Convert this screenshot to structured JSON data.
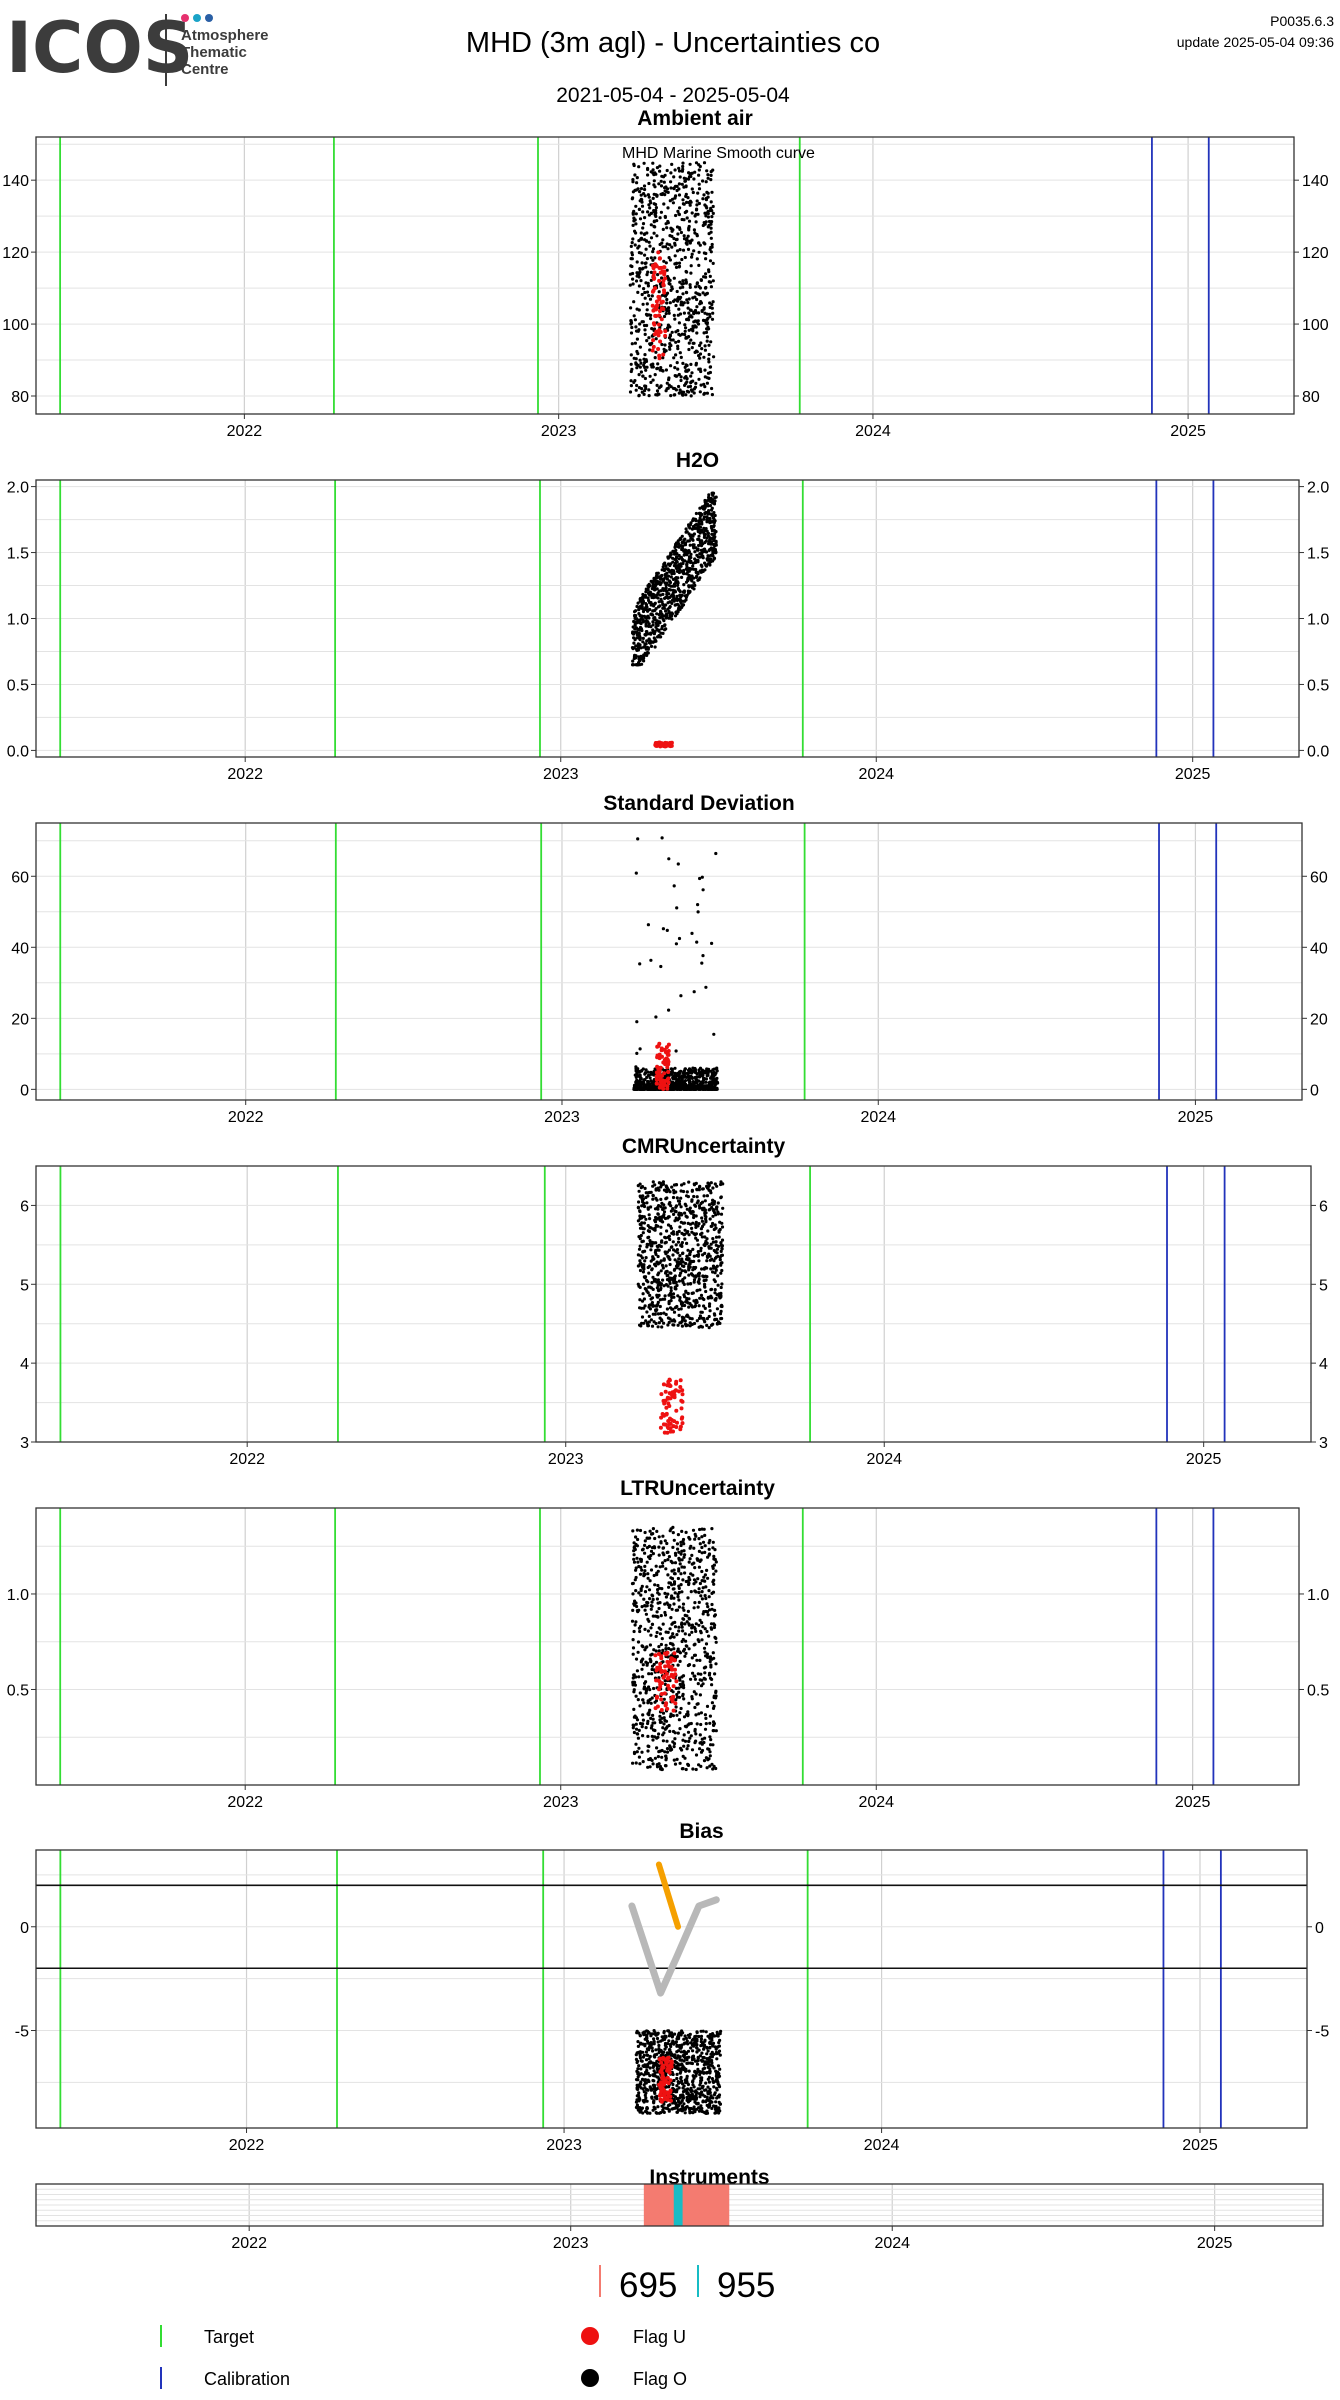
{
  "header": {
    "logo_text": "ICOS",
    "logo_sub": [
      "Atmosphere",
      "Thematic",
      "Centre"
    ],
    "logo_dot_colors": [
      "#e6306e",
      "#1aa3c7",
      "#2a5fa5"
    ],
    "title": "MHD  (3m agl) - Uncertainties co",
    "date_range": "2021-05-04 - 2025-05-04",
    "version": "P0035.6.3",
    "update": "update  2025-05-04 09:36"
  },
  "colors": {
    "target": "#33dd33",
    "calibration": "#2233bb",
    "flag_u": "#ee1111",
    "flag_o": "#000000",
    "bias_orange": "#f5a000",
    "bias_grey": "#b8b8b8",
    "instrument_695": "#f47b70",
    "instrument_955": "#17bcc4",
    "grid": "#e3e3e3"
  },
  "chart_data": [
    {
      "id": "ambient",
      "type": "scatter",
      "title": "Ambient air",
      "annotation": "MHD Marine Smooth curve",
      "xlim": [
        "2021-05-04",
        "2025-05-04"
      ],
      "ylim": [
        75,
        152
      ],
      "yticks": [
        80,
        100,
        120,
        140
      ],
      "xticks": [
        "2022",
        "2023",
        "2024",
        "2025"
      ],
      "target_lines": [
        "2021-06-01",
        "2022-04-15",
        "2022-12-08",
        "2023-10-08"
      ],
      "calibration_lines": [
        "2024-11-20",
        "2025-01-25"
      ],
      "series": [
        {
          "flag": "O",
          "x_range": [
            "2023-03-25",
            "2023-06-30"
          ],
          "y_range": [
            80,
            145
          ]
        },
        {
          "flag": "U",
          "x_range": [
            "2023-04-20",
            "2023-05-05"
          ],
          "y_range": [
            90,
            120
          ]
        }
      ]
    },
    {
      "id": "h2o",
      "type": "scatter",
      "title": "H2O",
      "xlim": [
        "2021-05-04",
        "2025-05-04"
      ],
      "ylim": [
        -0.05,
        2.05
      ],
      "yticks": [
        0.0,
        0.5,
        1.0,
        1.5,
        2.0
      ],
      "ytick_labels": [
        "0.0",
        "0.5",
        "1.0",
        "1.5",
        "2.0"
      ],
      "xticks": [
        "2022",
        "2023",
        "2024",
        "2025"
      ],
      "target_lines": [
        "2021-06-01",
        "2022-04-15",
        "2022-12-08",
        "2023-10-08"
      ],
      "calibration_lines": [
        "2024-11-20",
        "2025-01-25"
      ],
      "series": [
        {
          "flag": "O",
          "x_range": [
            "2023-03-25",
            "2023-06-30"
          ],
          "y_range": [
            0.65,
            1.95
          ]
        },
        {
          "flag": "U",
          "x_range": [
            "2023-04-20",
            "2023-05-10"
          ],
          "y_range": [
            0.03,
            0.06
          ]
        }
      ]
    },
    {
      "id": "std",
      "type": "scatter",
      "title": "Standard Deviation",
      "xlim": [
        "2021-05-04",
        "2025-05-04"
      ],
      "ylim": [
        -3,
        75
      ],
      "yticks": [
        0,
        20,
        40,
        60
      ],
      "xticks": [
        "2022",
        "2023",
        "2024",
        "2025"
      ],
      "target_lines": [
        "2021-06-01",
        "2022-04-15",
        "2022-12-08",
        "2023-10-08"
      ],
      "calibration_lines": [
        "2024-11-20",
        "2025-01-25"
      ],
      "series": [
        {
          "flag": "O",
          "x_range": [
            "2023-03-25",
            "2023-06-30"
          ],
          "y_range": [
            0,
            72
          ]
        },
        {
          "flag": "U",
          "x_range": [
            "2023-04-20",
            "2023-05-05"
          ],
          "y_range": [
            0,
            13
          ]
        }
      ]
    },
    {
      "id": "cmr",
      "type": "scatter",
      "title": "CMRUncertainty",
      "xlim": [
        "2021-05-04",
        "2025-05-04"
      ],
      "ylim": [
        3,
        6.5
      ],
      "yticks": [
        3,
        4,
        5,
        6
      ],
      "xticks": [
        "2022",
        "2023",
        "2024",
        "2025"
      ],
      "target_lines": [
        "2021-06-01",
        "2022-04-15",
        "2022-12-08",
        "2023-10-08"
      ],
      "calibration_lines": [
        "2024-11-20",
        "2025-01-25"
      ],
      "series": [
        {
          "flag": "O",
          "x_range": [
            "2023-03-25",
            "2023-06-30"
          ],
          "y_range": [
            4.45,
            6.3
          ]
        },
        {
          "flag": "U",
          "x_range": [
            "2023-04-20",
            "2023-05-15"
          ],
          "y_range": [
            3.1,
            3.8
          ]
        }
      ]
    },
    {
      "id": "ltr",
      "type": "scatter",
      "title": "LTRUncertainty",
      "xlim": [
        "2021-05-04",
        "2025-05-04"
      ],
      "ylim": [
        0.0,
        1.45
      ],
      "yticks": [
        0.5,
        1.0
      ],
      "ytick_labels": [
        "0.5",
        "1.0"
      ],
      "xticks": [
        "2022",
        "2023",
        "2024",
        "2025"
      ],
      "target_lines": [
        "2021-06-01",
        "2022-04-15",
        "2022-12-08",
        "2023-10-08"
      ],
      "calibration_lines": [
        "2024-11-20",
        "2025-01-25"
      ],
      "series": [
        {
          "flag": "O",
          "x_range": [
            "2023-03-25",
            "2023-06-30"
          ],
          "y_range": [
            0.08,
            1.35
          ]
        },
        {
          "flag": "U",
          "x_range": [
            "2023-04-20",
            "2023-05-15"
          ],
          "y_range": [
            0.38,
            0.7
          ]
        }
      ]
    },
    {
      "id": "bias",
      "type": "scatter",
      "title": "Bias",
      "xlim": [
        "2021-05-04",
        "2025-05-04"
      ],
      "ylim": [
        -9.7,
        3.7
      ],
      "yticks": [
        -5,
        0
      ],
      "xticks": [
        "2022",
        "2023",
        "2024",
        "2025"
      ],
      "target_lines": [
        "2021-06-01",
        "2022-04-15",
        "2022-12-08",
        "2023-10-08"
      ],
      "calibration_lines": [
        "2024-11-20",
        "2025-01-25"
      ],
      "hlines": [
        2,
        -2
      ],
      "orange_path": [
        [
          "2023-04-20",
          3.0
        ],
        [
          "2023-05-12",
          0.0
        ]
      ],
      "grey_path": [
        [
          "2023-03-20",
          1.0
        ],
        [
          "2023-04-22",
          -3.2
        ],
        [
          "2023-05-10",
          -1.5
        ],
        [
          "2023-06-05",
          1.0
        ],
        [
          "2023-06-25",
          1.3
        ]
      ],
      "series": [
        {
          "flag": "O",
          "x_range": [
            "2023-03-25",
            "2023-06-30"
          ],
          "y_range": [
            -9.0,
            -5.0
          ]
        },
        {
          "flag": "U",
          "x_range": [
            "2023-04-20",
            "2023-05-05"
          ],
          "y_range": [
            -8.5,
            -6.3
          ]
        }
      ]
    },
    {
      "id": "instruments",
      "type": "bar",
      "title": "Instruments",
      "xlim": [
        "2021-05-04",
        "2025-05-04"
      ],
      "xticks": [
        "2022",
        "2023",
        "2024",
        "2025"
      ],
      "segments": [
        {
          "instrument": "695",
          "start": "2023-03-25",
          "end": "2023-06-30"
        },
        {
          "instrument": "955",
          "start": "2023-04-28",
          "end": "2023-05-08"
        }
      ]
    }
  ],
  "instrument_legend": [
    {
      "label": "695",
      "color": "#f47b70"
    },
    {
      "label": "955",
      "color": "#17bcc4"
    }
  ],
  "legend": [
    {
      "label": "Target",
      "kind": "vline",
      "color": "#33dd33"
    },
    {
      "label": "Calibration",
      "kind": "vline",
      "color": "#2233bb"
    },
    {
      "label": "Flag U",
      "kind": "dot",
      "color": "#ee1111"
    },
    {
      "label": "Flag O",
      "kind": "dot",
      "color": "#000000"
    }
  ]
}
